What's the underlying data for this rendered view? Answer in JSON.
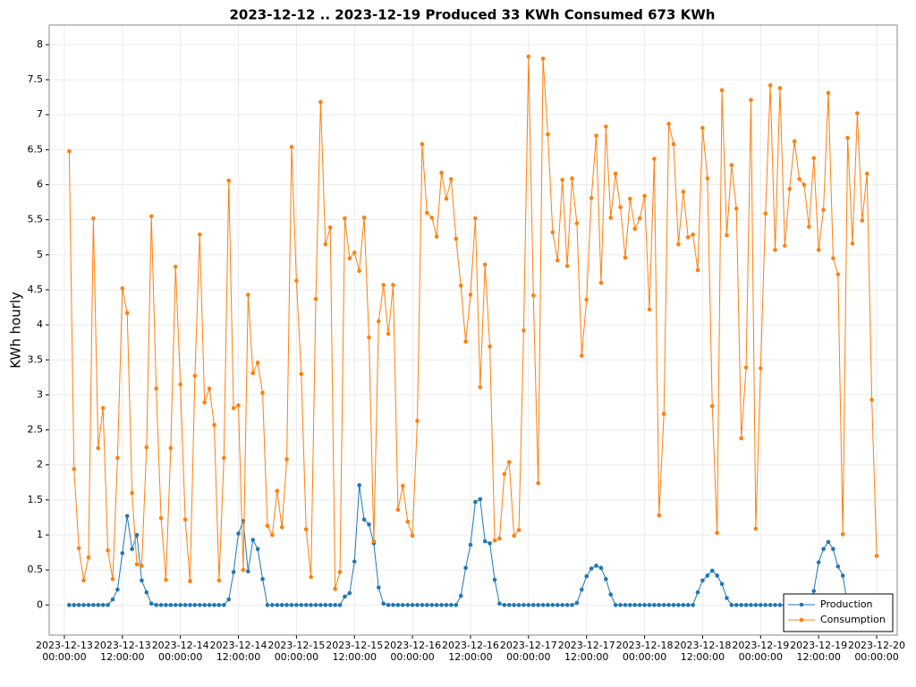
{
  "chart_data": {
    "type": "line",
    "title": "2023-12-12 .. 2023-12-19 Produced 33 KWh Consumed 673 KWh",
    "y_label": "KWh hourly",
    "x": [
      "2023-12-13T01:00",
      "2023-12-13T02:00",
      "2023-12-13T03:00",
      "2023-12-13T04:00",
      "2023-12-13T05:00",
      "2023-12-13T06:00",
      "2023-12-13T07:00",
      "2023-12-13T08:00",
      "2023-12-13T09:00",
      "2023-12-13T10:00",
      "2023-12-13T11:00",
      "2023-12-13T12:00",
      "2023-12-13T13:00",
      "2023-12-13T14:00",
      "2023-12-13T15:00",
      "2023-12-13T16:00",
      "2023-12-13T17:00",
      "2023-12-13T18:00",
      "2023-12-13T19:00",
      "2023-12-13T20:00",
      "2023-12-13T21:00",
      "2023-12-13T22:00",
      "2023-12-13T23:00",
      "2023-12-14T00:00",
      "2023-12-14T01:00",
      "2023-12-14T02:00",
      "2023-12-14T03:00",
      "2023-12-14T04:00",
      "2023-12-14T05:00",
      "2023-12-14T06:00",
      "2023-12-14T07:00",
      "2023-12-14T08:00",
      "2023-12-14T09:00",
      "2023-12-14T10:00",
      "2023-12-14T11:00",
      "2023-12-14T12:00",
      "2023-12-14T13:00",
      "2023-12-14T14:00",
      "2023-12-14T15:00",
      "2023-12-14T16:00",
      "2023-12-14T17:00",
      "2023-12-14T18:00",
      "2023-12-14T19:00",
      "2023-12-14T20:00",
      "2023-12-14T21:00",
      "2023-12-14T22:00",
      "2023-12-14T23:00",
      "2023-12-15T00:00",
      "2023-12-15T01:00",
      "2023-12-15T02:00",
      "2023-12-15T03:00",
      "2023-12-15T04:00",
      "2023-12-15T05:00",
      "2023-12-15T06:00",
      "2023-12-15T07:00",
      "2023-12-15T08:00",
      "2023-12-15T09:00",
      "2023-12-15T10:00",
      "2023-12-15T11:00",
      "2023-12-15T12:00",
      "2023-12-15T13:00",
      "2023-12-15T14:00",
      "2023-12-15T15:00",
      "2023-12-15T16:00",
      "2023-12-15T17:00",
      "2023-12-15T18:00",
      "2023-12-15T19:00",
      "2023-12-15T20:00",
      "2023-12-15T21:00",
      "2023-12-15T22:00",
      "2023-12-15T23:00",
      "2023-12-16T00:00",
      "2023-12-16T01:00",
      "2023-12-16T02:00",
      "2023-12-16T03:00",
      "2023-12-16T04:00",
      "2023-12-16T05:00",
      "2023-12-16T06:00",
      "2023-12-16T07:00",
      "2023-12-16T08:00",
      "2023-12-16T09:00",
      "2023-12-16T10:00",
      "2023-12-16T11:00",
      "2023-12-16T12:00",
      "2023-12-16T13:00",
      "2023-12-16T14:00",
      "2023-12-16T15:00",
      "2023-12-16T16:00",
      "2023-12-16T17:00",
      "2023-12-16T18:00",
      "2023-12-16T19:00",
      "2023-12-16T20:00",
      "2023-12-16T21:00",
      "2023-12-16T22:00",
      "2023-12-16T23:00",
      "2023-12-17T00:00",
      "2023-12-17T01:00",
      "2023-12-17T02:00",
      "2023-12-17T03:00",
      "2023-12-17T04:00",
      "2023-12-17T05:00",
      "2023-12-17T06:00",
      "2023-12-17T07:00",
      "2023-12-17T08:00",
      "2023-12-17T09:00",
      "2023-12-17T10:00",
      "2023-12-17T11:00",
      "2023-12-17T12:00",
      "2023-12-17T13:00",
      "2023-12-17T14:00",
      "2023-12-17T15:00",
      "2023-12-17T16:00",
      "2023-12-17T17:00",
      "2023-12-17T18:00",
      "2023-12-17T19:00",
      "2023-12-17T20:00",
      "2023-12-17T21:00",
      "2023-12-17T22:00",
      "2023-12-17T23:00",
      "2023-12-18T00:00",
      "2023-12-18T01:00",
      "2023-12-18T02:00",
      "2023-12-18T03:00",
      "2023-12-18T04:00",
      "2023-12-18T05:00",
      "2023-12-18T06:00",
      "2023-12-18T07:00",
      "2023-12-18T08:00",
      "2023-12-18T09:00",
      "2023-12-18T10:00",
      "2023-12-18T11:00",
      "2023-12-18T12:00",
      "2023-12-18T13:00",
      "2023-12-18T14:00",
      "2023-12-18T15:00",
      "2023-12-18T16:00",
      "2023-12-18T17:00",
      "2023-12-18T18:00",
      "2023-12-18T19:00",
      "2023-12-18T20:00",
      "2023-12-18T21:00",
      "2023-12-18T22:00",
      "2023-12-18T23:00",
      "2023-12-19T00:00",
      "2023-12-19T01:00",
      "2023-12-19T02:00",
      "2023-12-19T03:00",
      "2023-12-19T04:00",
      "2023-12-19T05:00",
      "2023-12-19T06:00",
      "2023-12-19T07:00",
      "2023-12-19T08:00",
      "2023-12-19T09:00",
      "2023-12-19T10:00",
      "2023-12-19T11:00",
      "2023-12-19T12:00",
      "2023-12-19T13:00",
      "2023-12-19T14:00",
      "2023-12-19T15:00",
      "2023-12-19T16:00",
      "2023-12-19T17:00",
      "2023-12-19T18:00",
      "2023-12-19T19:00",
      "2023-12-19T20:00",
      "2023-12-19T21:00",
      "2023-12-19T22:00",
      "2023-12-19T23:00",
      "2023-12-20T00:00"
    ],
    "series": [
      {
        "name": "Production",
        "color": "#1f77b4",
        "values": [
          0,
          0,
          0,
          0,
          0,
          0,
          0,
          0,
          0,
          0.08,
          0.22,
          0.74,
          1.27,
          0.8,
          1.0,
          0.35,
          0.18,
          0.02,
          0,
          0,
          0,
          0,
          0,
          0,
          0,
          0,
          0,
          0,
          0,
          0,
          0,
          0,
          0,
          0.08,
          0.47,
          1.02,
          1.2,
          0.48,
          0.93,
          0.8,
          0.37,
          0,
          0,
          0,
          0,
          0,
          0,
          0,
          0,
          0,
          0,
          0,
          0,
          0,
          0,
          0,
          0,
          0.12,
          0.17,
          0.62,
          1.71,
          1.22,
          1.15,
          0.88,
          0.25,
          0.02,
          0,
          0,
          0,
          0,
          0,
          0,
          0,
          0,
          0,
          0,
          0,
          0,
          0,
          0,
          0,
          0.13,
          0.53,
          0.86,
          1.47,
          1.51,
          0.91,
          0.88,
          0.36,
          0.02,
          0,
          0,
          0,
          0,
          0,
          0,
          0,
          0,
          0,
          0,
          0,
          0,
          0,
          0,
          0,
          0.03,
          0.22,
          0.41,
          0.52,
          0.56,
          0.53,
          0.37,
          0.15,
          0,
          0,
          0,
          0,
          0,
          0,
          0,
          0,
          0,
          0,
          0,
          0,
          0,
          0,
          0,
          0,
          0,
          0.18,
          0.35,
          0.42,
          0.49,
          0.42,
          0.3,
          0.1,
          0,
          0,
          0,
          0,
          0,
          0,
          0,
          0,
          0,
          0,
          0,
          0,
          0,
          0,
          0,
          0,
          0,
          0.2,
          0.61,
          0.8,
          0.9,
          0.8,
          0.55,
          0.42,
          0,
          0,
          0,
          0,
          0,
          0,
          0
        ]
      },
      {
        "name": "Consumption",
        "color": "#ff7f0e",
        "values": [
          6.48,
          1.94,
          0.81,
          0.35,
          0.68,
          5.52,
          2.24,
          2.81,
          0.78,
          0.37,
          2.1,
          4.52,
          4.17,
          1.6,
          0.58,
          0.56,
          2.25,
          5.55,
          3.09,
          1.24,
          0.36,
          2.24,
          4.83,
          3.15,
          1.22,
          0.34,
          3.27,
          5.29,
          2.89,
          3.09,
          2.57,
          0.35,
          2.1,
          6.06,
          2.81,
          2.85,
          0.5,
          4.43,
          3.31,
          3.46,
          3.03,
          1.13,
          1.0,
          1.63,
          1.11,
          2.08,
          6.54,
          4.63,
          3.3,
          1.08,
          0.4,
          4.37,
          7.18,
          5.15,
          5.39,
          0.23,
          0.47,
          5.52,
          4.95,
          5.03,
          4.77,
          5.53,
          3.82,
          0.91,
          4.05,
          4.57,
          3.87,
          4.57,
          1.36,
          1.7,
          1.19,
          0.99,
          2.63,
          6.58,
          5.6,
          5.53,
          5.26,
          6.17,
          5.8,
          6.08,
          5.23,
          4.56,
          3.76,
          4.43,
          5.52,
          3.11,
          4.86,
          3.69,
          0.92,
          0.95,
          1.87,
          2.04,
          0.99,
          1.07,
          3.92,
          7.83,
          4.42,
          1.74,
          7.8,
          6.72,
          5.32,
          4.92,
          6.07,
          4.84,
          6.09,
          5.45,
          3.56,
          4.36,
          5.81,
          6.7,
          4.6,
          6.83,
          5.53,
          6.16,
          5.68,
          4.96,
          5.8,
          5.37,
          5.52,
          5.84,
          4.22,
          6.37,
          1.28,
          2.73,
          6.87,
          6.58,
          5.15,
          5.9,
          5.25,
          5.29,
          4.78,
          6.81,
          6.09,
          2.84,
          1.03,
          7.35,
          5.28,
          6.28,
          5.66,
          2.38,
          3.39,
          7.21,
          1.09,
          3.38,
          5.59,
          7.42,
          5.07,
          7.38,
          5.13,
          5.94,
          6.62,
          6.08,
          6.0,
          5.4,
          6.38,
          5.07,
          5.64,
          7.31,
          4.95,
          4.72,
          1.01,
          6.67,
          5.16,
          7.02,
          5.49,
          6.16,
          2.93,
          0.7
        ]
      }
    ],
    "xlim": [
      "2023-12-12T20:52",
      "2023-12-20T04:15"
    ],
    "xticks": [
      {
        "value": "2023-12-13T00:00",
        "label": "2023-12-13\n00:00:00"
      },
      {
        "value": "2023-12-13T12:00",
        "label": "2023-12-13\n12:00:00"
      },
      {
        "value": "2023-12-14T00:00",
        "label": "2023-12-14\n00:00:00"
      },
      {
        "value": "2023-12-14T12:00",
        "label": "2023-12-14\n12:00:00"
      },
      {
        "value": "2023-12-15T00:00",
        "label": "2023-12-15\n00:00:00"
      },
      {
        "value": "2023-12-15T12:00",
        "label": "2023-12-15\n12:00:00"
      },
      {
        "value": "2023-12-16T00:00",
        "label": "2023-12-16\n00:00:00"
      },
      {
        "value": "2023-12-16T12:00",
        "label": "2023-12-16\n12:00:00"
      },
      {
        "value": "2023-12-17T00:00",
        "label": "2023-12-17\n00:00:00"
      },
      {
        "value": "2023-12-17T12:00",
        "label": "2023-12-17\n12:00:00"
      },
      {
        "value": "2023-12-18T00:00",
        "label": "2023-12-18\n00:00:00"
      },
      {
        "value": "2023-12-18T12:00",
        "label": "2023-12-18\n12:00:00"
      },
      {
        "value": "2023-12-19T00:00",
        "label": "2023-12-19\n00:00:00"
      },
      {
        "value": "2023-12-19T12:00",
        "label": "2023-12-19\n12:00:00"
      },
      {
        "value": "2023-12-20T00:00",
        "label": "2023-12-20\n00:00:00"
      }
    ],
    "ylim": [
      -0.43,
      8.28
    ],
    "yticks": [
      0,
      0.5,
      1,
      1.5,
      2,
      2.5,
      3,
      3.5,
      4,
      4.5,
      5,
      5.5,
      6,
      6.5,
      7,
      7.5,
      8
    ],
    "grid": true,
    "legend": "lower right"
  }
}
